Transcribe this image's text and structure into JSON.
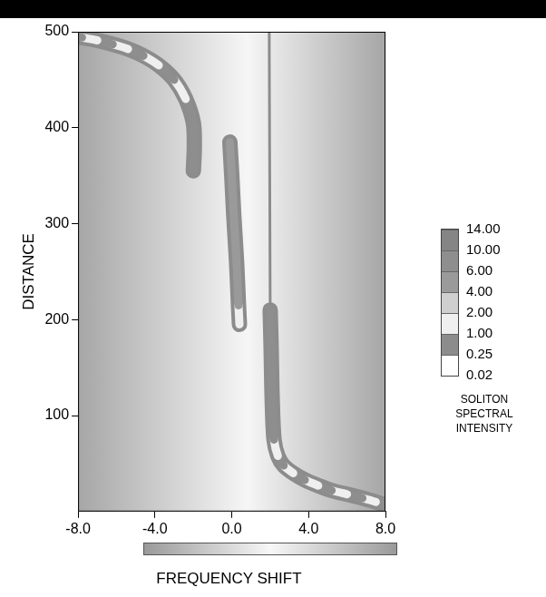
{
  "chart_data": {
    "type": "heatmap",
    "x_label": "FREQUENCY SHIFT",
    "y_label": "DISTANCE",
    "xlim": [
      -8,
      8
    ],
    "xticks": [
      {
        "value": -8,
        "label": "-8.0"
      },
      {
        "value": -4,
        "label": "-4.0"
      },
      {
        "value": 0,
        "label": "0.0"
      },
      {
        "value": 4,
        "label": "4.0"
      },
      {
        "value": 8,
        "label": "8.0"
      }
    ],
    "ylim": [
      0,
      500
    ],
    "yticks": [
      100,
      200,
      300,
      400,
      500
    ],
    "grid": false,
    "colorbar": {
      "title": "SOLITON SPECTRAL INTENSITY",
      "ticks": [
        0.02,
        0.25,
        {
          "value": 1,
          "label": "1.00"
        },
        {
          "value": 2,
          "label": "2.00"
        },
        {
          "value": 4,
          "label": "4.00"
        },
        {
          "value": 6,
          "label": "6.00"
        },
        {
          "value": 10,
          "label": "10.00"
        },
        {
          "value": 14,
          "label": "14.00"
        }
      ],
      "colors": [
        "#ffffff",
        "#8c8c8c",
        "#efefef",
        "#cfcfcf",
        "#9a9a9a",
        "#8e8e8e",
        "#858585"
      ]
    },
    "tracks": [
      {
        "x": [
          8.2,
          7.5,
          6.8,
          6.0,
          5.2,
          4.5,
          3.8,
          3.2,
          2.7,
          2.4,
          2.2,
          2.1,
          2.05,
          2.0
        ],
        "y": [
          5,
          10,
          14,
          18,
          22,
          27,
          33,
          40,
          48,
          58,
          75,
          120,
          170,
          210
        ],
        "intensity": [
          6,
          1.5,
          6,
          1.5,
          6,
          1.5,
          6,
          1.5,
          6,
          1.5,
          6,
          6,
          6,
          6
        ]
      },
      {
        "x": [
          2.0,
          1.95
        ],
        "y": [
          210,
          500
        ],
        "intensity": [
          0.25,
          0.25
        ]
      },
      {
        "x": [
          0.4,
          0.35,
          0.25,
          0.1,
          0.0,
          -0.1
        ],
        "y": [
          195,
          215,
          260,
          310,
          350,
          385
        ],
        "intensity": [
          1.5,
          4,
          4,
          4,
          4,
          4
        ]
      },
      {
        "x": [
          -2.0,
          -1.95,
          -2.0,
          -2.4,
          -3.0,
          -3.8,
          -4.6,
          -5.4,
          -6.2,
          -7.0,
          -7.8,
          -8.5
        ],
        "y": [
          355,
          380,
          405,
          430,
          450,
          465,
          475,
          482,
          487,
          491,
          494,
          497
        ],
        "intensity": [
          6,
          6,
          6,
          1.5,
          6,
          1.5,
          6,
          1.5,
          6,
          1.5,
          6,
          6
        ]
      }
    ]
  }
}
